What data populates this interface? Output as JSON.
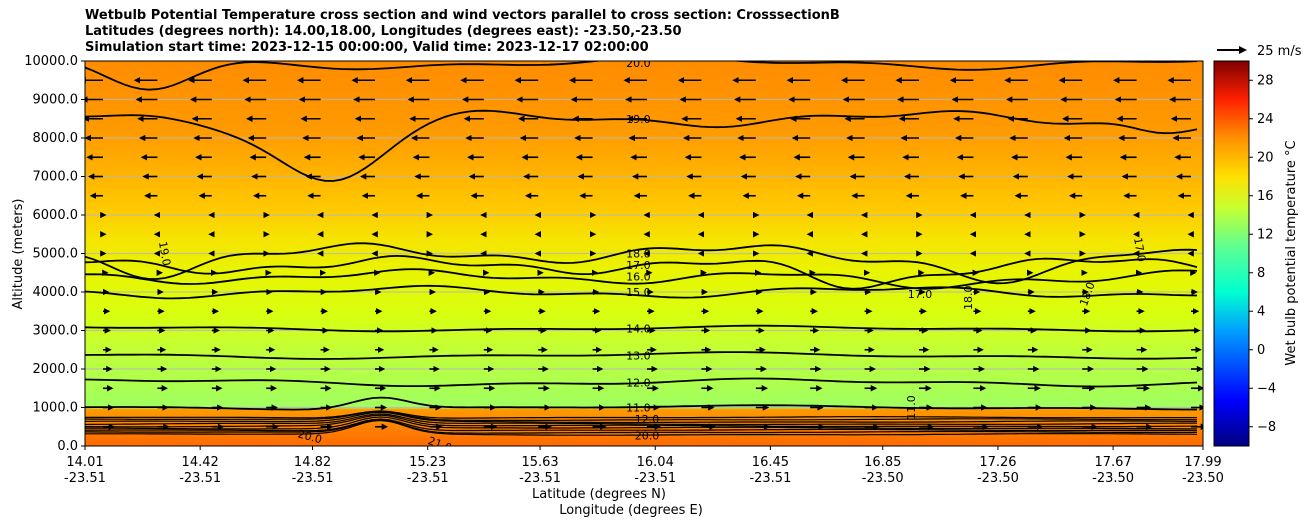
{
  "title": {
    "line1": "Wetbulb Potential Temperature cross section and wind vectors parallel to cross section: CrosssectionB",
    "line2": "Latitudes (degrees north): 14.00,18.00, Longitudes (degrees east): -23.50,-23.50",
    "line3": "Simulation start time: 2023-12-15 00:00:00, Valid time: 2023-12-17 02:00:00"
  },
  "chart_data": {
    "type": "heatmap",
    "ylabel": "Altitude (meters)",
    "xlabel": "Latitude (degrees N)",
    "xlabel2": "Longitude (degrees E)",
    "ylim": [
      0,
      10000
    ],
    "yticks": [
      "0.0",
      "1000.0",
      "2000.0",
      "3000.0",
      "4000.0",
      "5000.0",
      "6000.0",
      "7000.0",
      "8000.0",
      "9000.0",
      "10000.0"
    ],
    "xlim": [
      14.01,
      17.99
    ],
    "xticks": [
      {
        "lat": "14.01",
        "lon": "-23.51"
      },
      {
        "lat": "14.42",
        "lon": "-23.51"
      },
      {
        "lat": "14.82",
        "lon": "-23.51"
      },
      {
        "lat": "15.23",
        "lon": "-23.51"
      },
      {
        "lat": "15.63",
        "lon": "-23.51"
      },
      {
        "lat": "16.04",
        "lon": "-23.51"
      },
      {
        "lat": "16.45",
        "lon": "-23.51"
      },
      {
        "lat": "16.85",
        "lon": "-23.50"
      },
      {
        "lat": "17.26",
        "lon": "-23.50"
      },
      {
        "lat": "17.67",
        "lon": "-23.50"
      },
      {
        "lat": "17.99",
        "lon": "-23.50"
      }
    ],
    "wind_reference": "25 m/s",
    "colorbar": {
      "label": "Wet bulb potential temperature °C",
      "range": [
        -10,
        30
      ],
      "ticks": [
        "−8",
        "−4",
        "0",
        "4",
        "8",
        "12",
        "16",
        "20",
        "24",
        "28"
      ]
    },
    "contours": [
      {
        "label": "20.0",
        "level": 20,
        "altitude": 9950
      },
      {
        "label": "19.0",
        "level": 19,
        "altitude": 8500
      },
      {
        "label": "18.0",
        "level": 18,
        "altitude": 5000
      },
      {
        "label": "17.0",
        "level": 17,
        "altitude": 4700
      },
      {
        "label": "16.0",
        "level": 16,
        "altitude": 4400
      },
      {
        "label": "15.0",
        "level": 15,
        "altitude": 4000
      },
      {
        "label": "14.0",
        "level": 14,
        "altitude": 3050
      },
      {
        "label": "13.0",
        "level": 13,
        "altitude": 2350
      },
      {
        "label": "12.0",
        "level": 12,
        "altitude": 1650
      },
      {
        "label": "11.0",
        "level": 11,
        "altitude": 1000
      }
    ],
    "extra_labels": [
      "19.0",
      "17.0",
      "18.0",
      "18.0",
      "17.0",
      "11.0",
      "20.0",
      "21.0",
      "12.0",
      "20.0"
    ]
  }
}
